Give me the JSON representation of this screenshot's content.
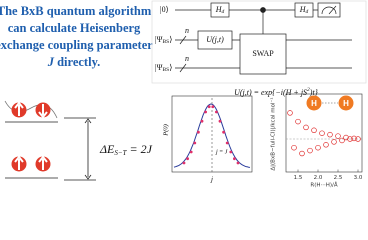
{
  "header": {
    "lines": [
      "The BxB quantum algorithm",
      "can calculate Heisenberg",
      "exchange coupling parameter"
    ],
    "last_italic": "J",
    "last_rest": " directly."
  },
  "circuit": {
    "inputs": [
      {
        "text": "|0⟩"
      },
      {
        "text": "|Ψ",
        "sub": "BS",
        "end": "⟩"
      },
      {
        "text": "|Ψ",
        "sub": "BS",
        "end": "⟩"
      }
    ],
    "register_size": [
      "n",
      "n"
    ],
    "gates": {
      "hadamard_1": {
        "text": "H",
        "sub": "d"
      },
      "evolution": "U(j,t)",
      "swap": "SWAP",
      "hadamard_2": {
        "text": "H",
        "sub": "d"
      }
    }
  },
  "formula": {
    "text": "U(j,t) = exp{−i(H + jS",
    "sup": "2",
    "end": ")t}"
  },
  "energy": {
    "text": "ΔE",
    "sub": "S−T",
    "end": " = 2J"
  },
  "probability_plot": {
    "y_label": "P(0)",
    "x_label": "j",
    "marker_label": "j = J"
  },
  "chart_data": {
    "type": "scatter",
    "x_label": "R(H···H)/Å",
    "y_label": "Δ|(BxB−full-CI)|/kcal mol⁻¹",
    "atoms": [
      "H",
      "H"
    ],
    "xlim": [
      1.2,
      3.1
    ],
    "ylim": [
      -1,
      1
    ],
    "xticks": [
      1.5,
      {
        "value": 2,
        "label": "2.0"
      },
      2.5,
      {
        "value": 3,
        "label": "3.0"
      }
    ],
    "series": [
      {
        "color": "#e03030",
        "x": [
          1.3,
          1.4,
          1.5,
          1.6,
          1.7,
          1.8,
          1.9,
          2.0,
          2.1,
          2.2,
          2.3,
          2.4,
          2.5,
          2.6,
          2.7,
          2.8,
          2.9,
          3.0
        ],
        "values": [
          0.9,
          -0.3,
          0.6,
          -0.5,
          0.4,
          -0.4,
          0.3,
          -0.3,
          0.2,
          -0.2,
          0.15,
          -0.1,
          0.1,
          -0.05,
          0.05,
          0,
          0.02,
          0
        ]
      }
    ]
  }
}
